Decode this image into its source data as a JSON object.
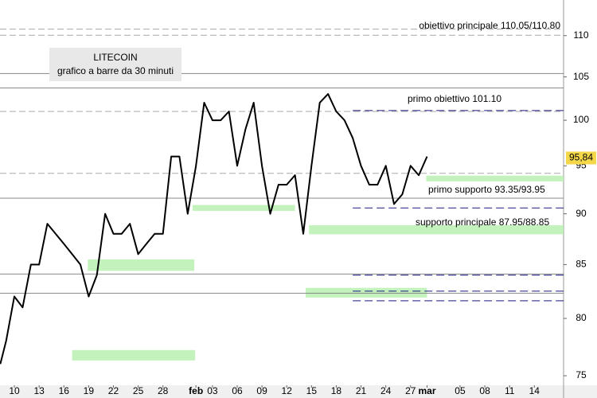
{
  "chart_data": {
    "type": "line",
    "title": "LITECOIN",
    "subtitle": "grafico a barre da 30 minuti",
    "log_scale": true,
    "series": [
      {
        "name": "LITECOIN",
        "color": "#000000",
        "x": [
          -1.7,
          -1,
          0,
          1,
          2,
          3,
          4,
          5,
          6,
          7,
          8,
          9,
          10,
          11,
          12,
          13,
          14,
          15,
          16,
          17,
          18,
          19,
          20,
          21,
          22,
          23,
          24,
          25,
          26,
          27,
          28,
          29,
          30,
          31,
          32,
          33,
          34,
          35,
          36,
          37,
          38,
          39,
          40,
          41,
          42,
          43,
          44,
          45,
          46,
          47,
          48,
          49,
          50
        ],
        "values": [
          76,
          78,
          82,
          81,
          85,
          85,
          89,
          88,
          87,
          86,
          85,
          82,
          84,
          90,
          88,
          88,
          89,
          86,
          87,
          88,
          88,
          96,
          96,
          90,
          95,
          102,
          100,
          100,
          101,
          95,
          99,
          102,
          95,
          90,
          93,
          93,
          94,
          88,
          95,
          102,
          103,
          101,
          100,
          98,
          95,
          93,
          93,
          95,
          91,
          92,
          95,
          94,
          96
        ]
      }
    ],
    "xlim": [
      -1.74,
      66.54
    ],
    "xticks": [
      {
        "value": 0,
        "label": "10"
      },
      {
        "value": 3,
        "label": "13"
      },
      {
        "value": 6,
        "label": "16"
      },
      {
        "value": 9,
        "label": "19"
      },
      {
        "value": 12,
        "label": "22"
      },
      {
        "value": 15,
        "label": "25"
      },
      {
        "value": 18,
        "label": "28"
      },
      {
        "value": 22,
        "label": "feb"
      },
      {
        "value": 24,
        "label": "03"
      },
      {
        "value": 27,
        "label": "06"
      },
      {
        "value": 30,
        "label": "09"
      },
      {
        "value": 33,
        "label": "12"
      },
      {
        "value": 36,
        "label": "15"
      },
      {
        "value": 39,
        "label": "18"
      },
      {
        "value": 42,
        "label": "21"
      },
      {
        "value": 45,
        "label": "24"
      },
      {
        "value": 48,
        "label": "27"
      },
      {
        "value": 50,
        "label": "mar"
      },
      {
        "value": 54,
        "label": "05"
      },
      {
        "value": 57,
        "label": "08"
      },
      {
        "value": 60,
        "label": "11"
      },
      {
        "value": 63,
        "label": "14"
      }
    ],
    "ylim": [
      74.2,
      114.5
    ],
    "yticks": [
      75,
      80,
      85,
      90,
      95,
      100,
      105,
      110
    ],
    "last_value": 95.84,
    "last_label": "95,84",
    "levels": [
      {
        "value": 110.8,
        "color": "#aaaaaa",
        "dashed": true
      },
      {
        "value": 110.05,
        "color": "#aaaaaa",
        "dashed": true
      },
      {
        "value": 105.4,
        "color": "#888888",
        "dashed": false
      },
      {
        "value": 103.7,
        "color": "#888888",
        "dashed": false
      },
      {
        "value": 101,
        "color": "#aaaaaa",
        "dashed": true
      },
      {
        "value": 94.2,
        "color": "#aaaaaa",
        "dashed": true
      },
      {
        "value": 91.6,
        "color": "#888888",
        "dashed": false
      },
      {
        "value": 84.1,
        "color": "#888888",
        "dashed": false
      },
      {
        "value": 82.3,
        "color": "#888888",
        "dashed": false
      }
    ],
    "targets": [
      {
        "value": 101.1,
        "x0": 41
      },
      {
        "value": 90.6,
        "x0": 41
      },
      {
        "value": 84,
        "x0": 41
      },
      {
        "value": 82.5,
        "x0": 41
      },
      {
        "value": 81.6,
        "x0": 41
      }
    ],
    "zones": [
      {
        "x0": 21.6,
        "x1": 34,
        "y0": 90.3,
        "y1": 90.9
      },
      {
        "x0": 8.9,
        "x1": 21.8,
        "y0": 84.4,
        "y1": 85.5
      },
      {
        "x0": 7,
        "x1": 21.9,
        "y0": 76.3,
        "y1": 77.2
      },
      {
        "x0": 35.3,
        "x1": 50,
        "y0": 81.9,
        "y1": 82.8
      },
      {
        "x0": 35.7,
        "x1": 66.54,
        "y0": 87.95,
        "y1": 88.85
      },
      {
        "x0": 49.9,
        "x1": 66.54,
        "y0": 93.35,
        "y1": 93.95
      }
    ],
    "annotations": [
      "obiettivo principale 110.05/110.80",
      "primo obiettivo 101.10",
      "primo supporto 93.35/93.95",
      "supporto principale 87.95/88.85"
    ]
  }
}
